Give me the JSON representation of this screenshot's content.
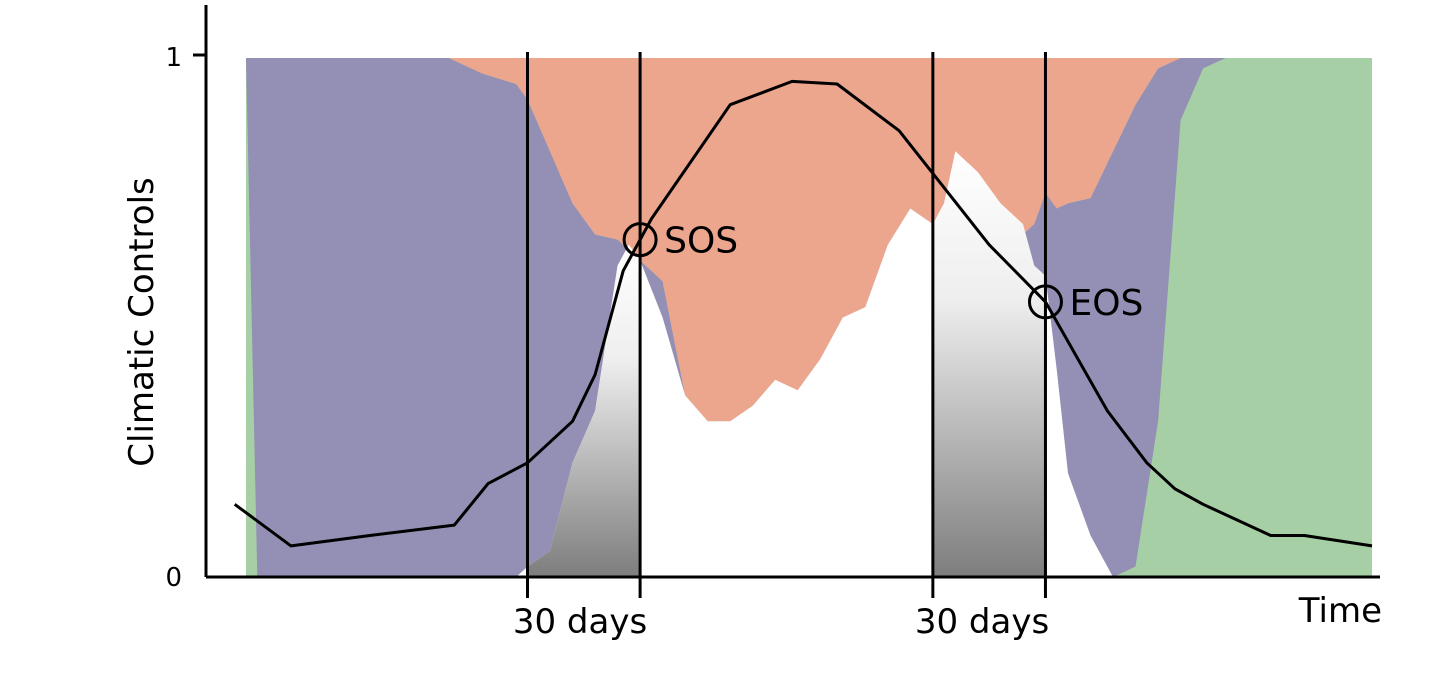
{
  "chart_data": {
    "type": "area",
    "ylabel": "Climatic Controls",
    "xlabel": "Time",
    "y_ticks": [
      "0",
      "1"
    ],
    "ylim": [
      0,
      1
    ],
    "xlim": [
      0,
      100
    ],
    "window_label": "30 days",
    "markers": [
      {
        "label": "SOS",
        "x": 35
      },
      {
        "label": "EOS",
        "x": 71
      }
    ],
    "windows": [
      {
        "label": "30 days",
        "start": 25,
        "end": 35
      },
      {
        "label": "30 days",
        "start": 61,
        "end": 71
      }
    ],
    "band_colors": {
      "green": "#a6cfa6",
      "purple": "#9490b5",
      "salmon": "#eda68e",
      "white": "#ffffff",
      "line": "#000000"
    },
    "boundaries": {
      "note_units": "cumulative fraction (0-1) at each time x",
      "x": [
        0,
        1,
        3,
        4.5,
        5,
        7,
        10,
        14,
        18,
        21,
        24,
        25,
        27,
        29,
        31,
        33,
        34,
        35,
        37,
        39,
        41,
        43,
        45,
        47,
        49,
        51,
        53,
        55,
        57,
        59,
        61,
        62,
        63,
        65,
        67,
        69,
        70,
        71,
        72,
        73,
        75,
        77,
        79,
        81,
        83,
        85,
        87,
        90,
        95,
        100
      ],
      "green_top": [
        1,
        0,
        0,
        0,
        0,
        0,
        0,
        0,
        0,
        0,
        0,
        0,
        0,
        0,
        0,
        0,
        0,
        0,
        0,
        0,
        0,
        0,
        0,
        0,
        0,
        0,
        0,
        0,
        0,
        0,
        0,
        0,
        0,
        0,
        0,
        0,
        0,
        0,
        0,
        0,
        0,
        0,
        0.02,
        0.3,
        0.88,
        0.98,
        1,
        1,
        1,
        1
      ],
      "purple_top": [
        1,
        1,
        1,
        1,
        1,
        1,
        1,
        1,
        1,
        0.97,
        0.95,
        0.92,
        0.82,
        0.72,
        0.66,
        0.65,
        0.63,
        0.61,
        0.57,
        0.35,
        0.3,
        0.3,
        0.33,
        0.38,
        0.36,
        0.42,
        0.5,
        0.52,
        0.64,
        0.71,
        0.68,
        0.72,
        0.69,
        0.74,
        0.72,
        0.66,
        0.68,
        0.74,
        0.71,
        0.72,
        0.73,
        0.82,
        0.91,
        0.98,
        1,
        1,
        1,
        1,
        1,
        1
      ],
      "white_top": [
        0,
        0,
        0,
        0,
        0,
        0,
        0,
        0,
        0,
        0,
        0,
        0.02,
        0.05,
        0.22,
        0.32,
        0.6,
        0.64,
        0.61,
        0.5,
        0.35,
        0.3,
        0.3,
        0.33,
        0.38,
        0.36,
        0.42,
        0.5,
        0.52,
        0.64,
        0.71,
        0.68,
        0.72,
        0.82,
        0.78,
        0.72,
        0.68,
        0.6,
        0.58,
        0.4,
        0.2,
        0.08,
        0,
        0,
        0,
        0,
        0,
        0,
        0,
        0,
        0
      ]
    },
    "series": [
      {
        "x": [
          -1,
          4,
          11,
          18.5,
          21.5,
          25,
          29,
          31,
          33.5,
          36,
          43,
          48.5,
          52.5,
          58,
          66,
          71,
          76.5,
          80,
          82.5,
          85,
          91,
          94,
          100
        ],
        "y": [
          0.14,
          0.06,
          0.08,
          0.1,
          0.18,
          0.22,
          0.3,
          0.39,
          0.59,
          0.69,
          0.91,
          0.955,
          0.95,
          0.86,
          0.64,
          0.53,
          0.32,
          0.22,
          0.17,
          0.14,
          0.08,
          0.08,
          0.06
        ]
      }
    ]
  }
}
